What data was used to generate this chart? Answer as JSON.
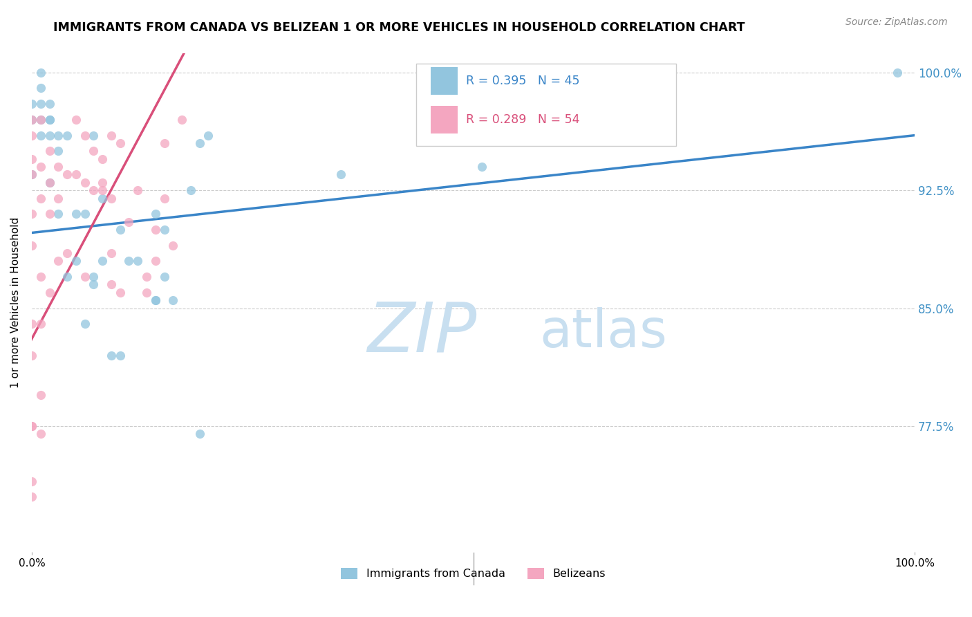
{
  "title": "IMMIGRANTS FROM CANADA VS BELIZEAN 1 OR MORE VEHICLES IN HOUSEHOLD CORRELATION CHART",
  "source": "Source: ZipAtlas.com",
  "ylabel": "1 or more Vehicles in Household",
  "xlim": [
    0.0,
    1.0
  ],
  "ylim": [
    0.695,
    1.012
  ],
  "y_ticks": [
    0.775,
    0.85,
    0.925,
    1.0
  ],
  "y_tick_labels": [
    "77.5%",
    "85.0%",
    "92.5%",
    "100.0%"
  ],
  "legend_label_canada": "Immigrants from Canada",
  "legend_label_belize": "Belizeans",
  "r_canada": "R = 0.395",
  "n_canada": "N = 45",
  "r_belize": "R = 0.289",
  "n_belize": "N = 54",
  "color_canada": "#92c5de",
  "color_belize": "#f4a6c0",
  "color_canada_line": "#3a85c8",
  "color_belize_line": "#d94f7a",
  "color_right_axis": "#4292c6",
  "watermark_zip": "#c8dff0",
  "watermark_atlas": "#c8dff0",
  "canada_x": [
    0.0,
    0.0,
    0.0,
    0.01,
    0.01,
    0.01,
    0.01,
    0.01,
    0.02,
    0.02,
    0.02,
    0.02,
    0.02,
    0.03,
    0.03,
    0.03,
    0.04,
    0.04,
    0.05,
    0.05,
    0.06,
    0.06,
    0.07,
    0.07,
    0.07,
    0.08,
    0.08,
    0.09,
    0.1,
    0.1,
    0.11,
    0.12,
    0.14,
    0.14,
    0.14,
    0.15,
    0.15,
    0.16,
    0.18,
    0.19,
    0.19,
    0.2,
    0.35,
    0.51,
    0.98
  ],
  "canada_y": [
    0.935,
    0.97,
    0.98,
    0.96,
    0.97,
    0.98,
    0.99,
    1.0,
    0.93,
    0.96,
    0.97,
    0.97,
    0.98,
    0.91,
    0.95,
    0.96,
    0.87,
    0.96,
    0.88,
    0.91,
    0.84,
    0.91,
    0.865,
    0.87,
    0.96,
    0.88,
    0.92,
    0.82,
    0.82,
    0.9,
    0.88,
    0.88,
    0.855,
    0.855,
    0.91,
    0.87,
    0.9,
    0.855,
    0.925,
    0.77,
    0.955,
    0.96,
    0.935,
    0.94,
    1.0
  ],
  "belize_x": [
    0.0,
    0.0,
    0.0,
    0.0,
    0.0,
    0.0,
    0.0,
    0.0,
    0.0,
    0.0,
    0.0,
    0.0,
    0.01,
    0.01,
    0.01,
    0.01,
    0.01,
    0.01,
    0.01,
    0.02,
    0.02,
    0.02,
    0.02,
    0.03,
    0.03,
    0.03,
    0.04,
    0.04,
    0.05,
    0.05,
    0.06,
    0.06,
    0.06,
    0.07,
    0.07,
    0.08,
    0.08,
    0.08,
    0.09,
    0.09,
    0.09,
    0.09,
    0.1,
    0.1,
    0.11,
    0.12,
    0.13,
    0.13,
    0.14,
    0.14,
    0.15,
    0.15,
    0.16,
    0.17
  ],
  "belize_y": [
    0.775,
    0.775,
    0.73,
    0.74,
    0.82,
    0.84,
    0.89,
    0.91,
    0.935,
    0.945,
    0.96,
    0.97,
    0.77,
    0.795,
    0.84,
    0.87,
    0.92,
    0.94,
    0.97,
    0.86,
    0.91,
    0.93,
    0.95,
    0.88,
    0.92,
    0.94,
    0.885,
    0.935,
    0.935,
    0.97,
    0.87,
    0.93,
    0.96,
    0.925,
    0.95,
    0.925,
    0.93,
    0.945,
    0.865,
    0.885,
    0.92,
    0.96,
    0.86,
    0.955,
    0.905,
    0.925,
    0.86,
    0.87,
    0.88,
    0.9,
    0.92,
    0.955,
    0.89,
    0.97
  ],
  "canada_trend_x": [
    0.0,
    1.0
  ],
  "canada_trend_y": [
    0.898,
    0.96
  ],
  "belize_trend_x": [
    -0.01,
    0.175
  ],
  "belize_trend_y": [
    0.82,
    1.015
  ]
}
